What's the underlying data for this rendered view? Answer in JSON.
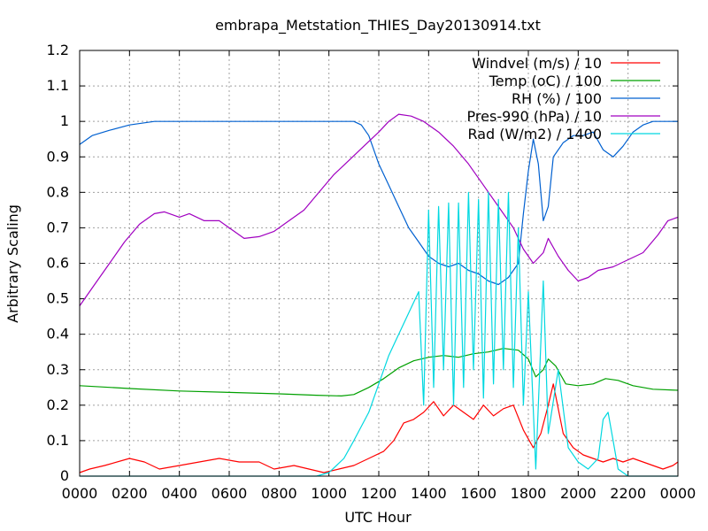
{
  "chart_data": {
    "type": "line",
    "title": "embrapa_Metstation_THIES_Day20130914.txt",
    "xlabel": "UTC Hour",
    "ylabel": "Arbitrary Scaling",
    "xlim": [
      0,
      2400
    ],
    "ylim": [
      0,
      1.2
    ],
    "grid": true,
    "legend_position": "top-right",
    "x_tick_labels": [
      "0000",
      "0200",
      "0400",
      "0600",
      "0800",
      "1000",
      "1200",
      "1400",
      "1600",
      "1800",
      "2000",
      "2200",
      "0000"
    ],
    "y_tick_labels": [
      "0",
      "0.1",
      "0.2",
      "0.3",
      "0.4",
      "0.5",
      "0.6",
      "0.7",
      "0.8",
      "0.9",
      "1",
      "1.1",
      "1.2"
    ],
    "series": [
      {
        "name": "Windvel (m/s) / 10",
        "color": "#ff0000",
        "points": [
          [
            0,
            0.01
          ],
          [
            40,
            0.02
          ],
          [
            100,
            0.03
          ],
          [
            200,
            0.05
          ],
          [
            260,
            0.04
          ],
          [
            320,
            0.02
          ],
          [
            400,
            0.03
          ],
          [
            480,
            0.04
          ],
          [
            560,
            0.05
          ],
          [
            640,
            0.04
          ],
          [
            720,
            0.04
          ],
          [
            780,
            0.02
          ],
          [
            860,
            0.03
          ],
          [
            920,
            0.02
          ],
          [
            980,
            0.01
          ],
          [
            1040,
            0.02
          ],
          [
            1100,
            0.03
          ],
          [
            1160,
            0.05
          ],
          [
            1220,
            0.07
          ],
          [
            1260,
            0.1
          ],
          [
            1300,
            0.15
          ],
          [
            1340,
            0.16
          ],
          [
            1380,
            0.18
          ],
          [
            1420,
            0.21
          ],
          [
            1460,
            0.17
          ],
          [
            1500,
            0.2
          ],
          [
            1540,
            0.18
          ],
          [
            1580,
            0.16
          ],
          [
            1620,
            0.2
          ],
          [
            1660,
            0.17
          ],
          [
            1700,
            0.19
          ],
          [
            1740,
            0.2
          ],
          [
            1780,
            0.13
          ],
          [
            1820,
            0.08
          ],
          [
            1850,
            0.12
          ],
          [
            1880,
            0.2
          ],
          [
            1900,
            0.26
          ],
          [
            1940,
            0.12
          ],
          [
            1980,
            0.08
          ],
          [
            2020,
            0.06
          ],
          [
            2060,
            0.05
          ],
          [
            2100,
            0.04
          ],
          [
            2140,
            0.05
          ],
          [
            2180,
            0.04
          ],
          [
            2220,
            0.05
          ],
          [
            2260,
            0.04
          ],
          [
            2300,
            0.03
          ],
          [
            2340,
            0.02
          ],
          [
            2380,
            0.03
          ],
          [
            2400,
            0.04
          ]
        ]
      },
      {
        "name": "Temp (oC) / 100",
        "color": "#00a000",
        "points": [
          [
            0,
            0.255
          ],
          [
            200,
            0.247
          ],
          [
            400,
            0.24
          ],
          [
            600,
            0.236
          ],
          [
            800,
            0.232
          ],
          [
            950,
            0.228
          ],
          [
            1050,
            0.226
          ],
          [
            1100,
            0.23
          ],
          [
            1160,
            0.25
          ],
          [
            1220,
            0.275
          ],
          [
            1280,
            0.305
          ],
          [
            1340,
            0.325
          ],
          [
            1400,
            0.335
          ],
          [
            1460,
            0.34
          ],
          [
            1520,
            0.335
          ],
          [
            1580,
            0.345
          ],
          [
            1640,
            0.35
          ],
          [
            1700,
            0.36
          ],
          [
            1760,
            0.355
          ],
          [
            1800,
            0.33
          ],
          [
            1830,
            0.28
          ],
          [
            1860,
            0.3
          ],
          [
            1880,
            0.33
          ],
          [
            1910,
            0.31
          ],
          [
            1950,
            0.26
          ],
          [
            2000,
            0.255
          ],
          [
            2060,
            0.26
          ],
          [
            2110,
            0.275
          ],
          [
            2160,
            0.27
          ],
          [
            2220,
            0.255
          ],
          [
            2300,
            0.245
          ],
          [
            2400,
            0.242
          ]
        ]
      },
      {
        "name": "RH (%) / 100",
        "color": "#0060d0",
        "points": [
          [
            0,
            0.935
          ],
          [
            50,
            0.96
          ],
          [
            120,
            0.975
          ],
          [
            200,
            0.99
          ],
          [
            300,
            1.0
          ],
          [
            500,
            1.0
          ],
          [
            700,
            1.0
          ],
          [
            900,
            1.0
          ],
          [
            1100,
            1.0
          ],
          [
            1130,
            0.99
          ],
          [
            1160,
            0.96
          ],
          [
            1200,
            0.88
          ],
          [
            1240,
            0.82
          ],
          [
            1280,
            0.76
          ],
          [
            1320,
            0.7
          ],
          [
            1360,
            0.66
          ],
          [
            1400,
            0.62
          ],
          [
            1440,
            0.6
          ],
          [
            1480,
            0.59
          ],
          [
            1520,
            0.6
          ],
          [
            1560,
            0.58
          ],
          [
            1600,
            0.57
          ],
          [
            1640,
            0.55
          ],
          [
            1680,
            0.54
          ],
          [
            1720,
            0.56
          ],
          [
            1760,
            0.6
          ],
          [
            1780,
            0.74
          ],
          [
            1800,
            0.86
          ],
          [
            1820,
            0.95
          ],
          [
            1840,
            0.88
          ],
          [
            1860,
            0.72
          ],
          [
            1880,
            0.76
          ],
          [
            1900,
            0.9
          ],
          [
            1940,
            0.94
          ],
          [
            1980,
            0.96
          ],
          [
            2020,
            0.96
          ],
          [
            2060,
            0.97
          ],
          [
            2100,
            0.92
          ],
          [
            2140,
            0.9
          ],
          [
            2180,
            0.93
          ],
          [
            2220,
            0.97
          ],
          [
            2260,
            0.99
          ],
          [
            2300,
            1.0
          ],
          [
            2400,
            1.0
          ]
        ]
      },
      {
        "name": "Pres-990 (hPa) / 10",
        "color": "#a000c0",
        "points": [
          [
            0,
            0.48
          ],
          [
            60,
            0.54
          ],
          [
            120,
            0.6
          ],
          [
            180,
            0.66
          ],
          [
            240,
            0.71
          ],
          [
            300,
            0.74
          ],
          [
            340,
            0.745
          ],
          [
            400,
            0.73
          ],
          [
            440,
            0.74
          ],
          [
            500,
            0.72
          ],
          [
            560,
            0.72
          ],
          [
            620,
            0.69
          ],
          [
            660,
            0.67
          ],
          [
            720,
            0.675
          ],
          [
            780,
            0.69
          ],
          [
            840,
            0.72
          ],
          [
            900,
            0.75
          ],
          [
            960,
            0.8
          ],
          [
            1020,
            0.85
          ],
          [
            1080,
            0.89
          ],
          [
            1140,
            0.93
          ],
          [
            1200,
            0.97
          ],
          [
            1240,
            1.0
          ],
          [
            1280,
            1.02
          ],
          [
            1330,
            1.015
          ],
          [
            1380,
            1.0
          ],
          [
            1440,
            0.97
          ],
          [
            1500,
            0.93
          ],
          [
            1560,
            0.88
          ],
          [
            1620,
            0.82
          ],
          [
            1680,
            0.76
          ],
          [
            1740,
            0.7
          ],
          [
            1780,
            0.64
          ],
          [
            1820,
            0.6
          ],
          [
            1860,
            0.63
          ],
          [
            1880,
            0.67
          ],
          [
            1920,
            0.62
          ],
          [
            1960,
            0.58
          ],
          [
            2000,
            0.55
          ],
          [
            2040,
            0.56
          ],
          [
            2080,
            0.58
          ],
          [
            2140,
            0.59
          ],
          [
            2200,
            0.61
          ],
          [
            2260,
            0.63
          ],
          [
            2320,
            0.68
          ],
          [
            2360,
            0.72
          ],
          [
            2400,
            0.73
          ]
        ]
      },
      {
        "name": "Rad (W/m2) / 1400",
        "color": "#00d8e0",
        "points": [
          [
            0,
            0.0
          ],
          [
            500,
            0.0
          ],
          [
            950,
            0.0
          ],
          [
            1000,
            0.01
          ],
          [
            1060,
            0.05
          ],
          [
            1100,
            0.1
          ],
          [
            1160,
            0.18
          ],
          [
            1200,
            0.26
          ],
          [
            1240,
            0.34
          ],
          [
            1280,
            0.4
          ],
          [
            1320,
            0.46
          ],
          [
            1360,
            0.52
          ],
          [
            1380,
            0.2
          ],
          [
            1400,
            0.75
          ],
          [
            1420,
            0.25
          ],
          [
            1440,
            0.76
          ],
          [
            1460,
            0.3
          ],
          [
            1480,
            0.77
          ],
          [
            1500,
            0.2
          ],
          [
            1520,
            0.77
          ],
          [
            1540,
            0.25
          ],
          [
            1560,
            0.8
          ],
          [
            1580,
            0.3
          ],
          [
            1600,
            0.78
          ],
          [
            1620,
            0.22
          ],
          [
            1640,
            0.8
          ],
          [
            1660,
            0.26
          ],
          [
            1680,
            0.78
          ],
          [
            1700,
            0.3
          ],
          [
            1720,
            0.8
          ],
          [
            1740,
            0.25
          ],
          [
            1760,
            0.7
          ],
          [
            1780,
            0.2
          ],
          [
            1800,
            0.52
          ],
          [
            1830,
            0.02
          ],
          [
            1860,
            0.55
          ],
          [
            1880,
            0.12
          ],
          [
            1920,
            0.3
          ],
          [
            1960,
            0.08
          ],
          [
            2000,
            0.04
          ],
          [
            2040,
            0.02
          ],
          [
            2080,
            0.05
          ],
          [
            2100,
            0.16
          ],
          [
            2120,
            0.18
          ],
          [
            2140,
            0.1
          ],
          [
            2160,
            0.02
          ],
          [
            2200,
            0.0
          ],
          [
            2400,
            0.0
          ]
        ]
      }
    ]
  }
}
